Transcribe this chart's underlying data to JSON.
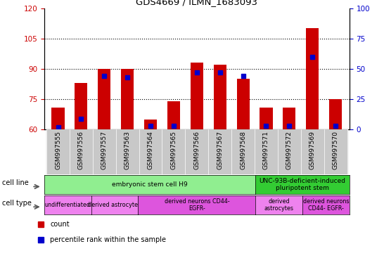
{
  "title": "GDS4669 / ILMN_1683093",
  "samples": [
    "GSM997555",
    "GSM997556",
    "GSM997557",
    "GSM997563",
    "GSM997564",
    "GSM997565",
    "GSM997566",
    "GSM997567",
    "GSM997568",
    "GSM997571",
    "GSM997572",
    "GSM997569",
    "GSM997570"
  ],
  "count_values": [
    71,
    83,
    90,
    90,
    65,
    74,
    93,
    92,
    85,
    71,
    71,
    110,
    75
  ],
  "percentile_values": [
    2,
    9,
    44,
    43,
    3,
    3,
    47,
    47,
    44,
    3,
    3,
    60,
    3
  ],
  "ylim_left": [
    60,
    120
  ],
  "ylim_right": [
    0,
    100
  ],
  "yticks_left": [
    60,
    75,
    90,
    105,
    120
  ],
  "yticks_right": [
    0,
    25,
    50,
    75,
    100
  ],
  "bar_color": "#cc0000",
  "percentile_color": "#0000cc",
  "bar_width": 0.55,
  "cell_line_data": [
    {
      "label": "embryonic stem cell H9",
      "start": 0,
      "end": 9,
      "color": "#90ee90"
    },
    {
      "label": "UNC-93B-deficient-induced\npluripotent stem",
      "start": 9,
      "end": 13,
      "color": "#33cc33"
    }
  ],
  "cell_type_data": [
    {
      "label": "undifferentiated",
      "start": 0,
      "end": 2,
      "color": "#ee82ee"
    },
    {
      "label": "derived astrocytes",
      "start": 2,
      "end": 4,
      "color": "#ee82ee"
    },
    {
      "label": "derived neurons CD44-\nEGFR-",
      "start": 4,
      "end": 9,
      "color": "#dd55dd"
    },
    {
      "label": "derived\nastrocytes",
      "start": 9,
      "end": 11,
      "color": "#ee82ee"
    },
    {
      "label": "derived neurons\nCD44- EGFR-",
      "start": 11,
      "end": 13,
      "color": "#dd55dd"
    }
  ],
  "tick_color_left": "#cc0000",
  "tick_color_right": "#0000cc"
}
